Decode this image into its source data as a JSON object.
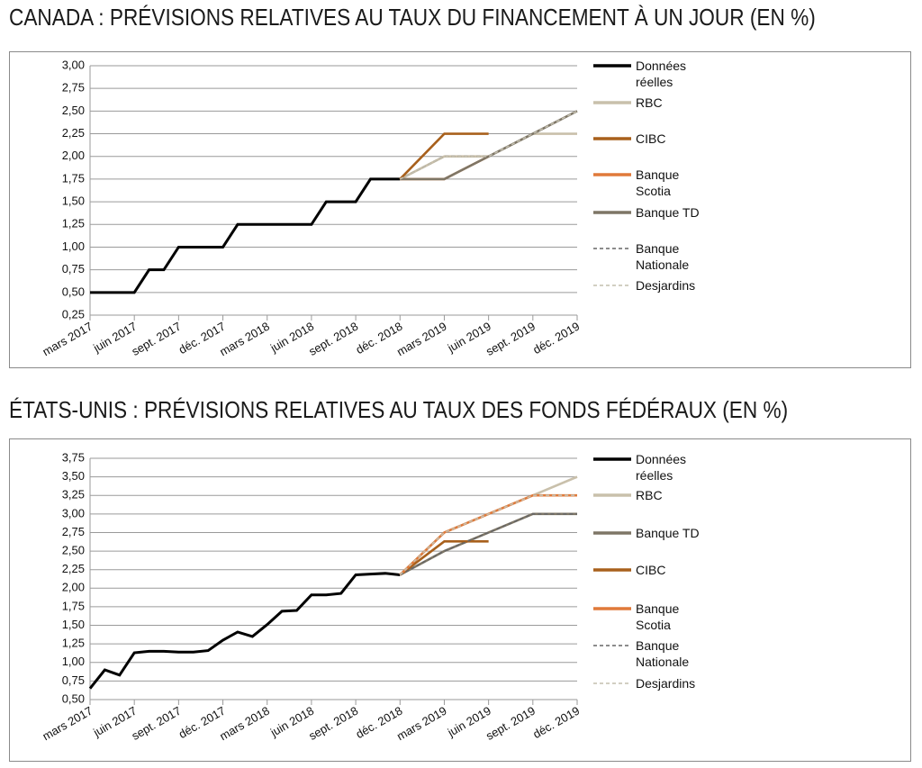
{
  "chart_data": [
    {
      "type": "line",
      "title": "CANADA : PRÉVISIONS RELATIVES AU TAUX DU FINANCEMENT À UN JOUR (EN %)",
      "xlim": [
        "2017-03",
        "2019-12"
      ],
      "xticks": [
        {
          "value": "2017-03",
          "label": "mars 2017"
        },
        {
          "value": "2017-06",
          "label": "juin 2017"
        },
        {
          "value": "2017-09",
          "label": "sept. 2017"
        },
        {
          "value": "2017-12",
          "label": "déc. 2017"
        },
        {
          "value": "2018-03",
          "label": "mars 2018"
        },
        {
          "value": "2018-06",
          "label": "juin 2018"
        },
        {
          "value": "2018-09",
          "label": "sept. 2018"
        },
        {
          "value": "2018-12",
          "label": "déc. 2018"
        },
        {
          "value": "2019-03",
          "label": "mars 2019"
        },
        {
          "value": "2019-06",
          "label": "juin 2019"
        },
        {
          "value": "2019-09",
          "label": "sept. 2019"
        },
        {
          "value": "2019-12",
          "label": "déc. 2019"
        }
      ],
      "ylim": [
        0.25,
        3.0
      ],
      "yticks": [
        {
          "value": 0.25,
          "label": "0,25"
        },
        {
          "value": 0.5,
          "label": "0,50"
        },
        {
          "value": 0.75,
          "label": "0,75"
        },
        {
          "value": 1.0,
          "label": "1,00"
        },
        {
          "value": 1.25,
          "label": "1,25"
        },
        {
          "value": 1.5,
          "label": "1,50"
        },
        {
          "value": 1.75,
          "label": "1,75"
        },
        {
          "value": 2.0,
          "label": "2,00"
        },
        {
          "value": 2.25,
          "label": "2,25"
        },
        {
          "value": 2.5,
          "label": "2,50"
        },
        {
          "value": 2.75,
          "label": "2,75"
        },
        {
          "value": 3.0,
          "label": "3,00"
        }
      ],
      "grid": true,
      "series": [
        {
          "name": "Données réelles",
          "color": "#000000",
          "x": [
            "2017-03",
            "2017-04",
            "2017-05",
            "2017-06",
            "2017-07",
            "2017-08",
            "2017-09",
            "2017-10",
            "2017-11",
            "2017-12",
            "2018-01",
            "2018-02",
            "2018-03",
            "2018-04",
            "2018-05",
            "2018-06",
            "2018-07",
            "2018-08",
            "2018-09",
            "2018-10",
            "2018-11",
            "2018-12"
          ],
          "values": [
            0.5,
            0.5,
            0.5,
            0.5,
            0.75,
            0.75,
            1.0,
            1.0,
            1.0,
            1.0,
            1.25,
            1.25,
            1.25,
            1.25,
            1.25,
            1.25,
            1.5,
            1.5,
            1.5,
            1.75,
            1.75,
            1.75
          ]
        },
        {
          "name": "RBC",
          "color": "#c9c0ab",
          "x": [
            "2018-12",
            "2019-03",
            "2019-06",
            "2019-09",
            "2019-12"
          ],
          "values": [
            1.75,
            2.0,
            2.0,
            2.25,
            2.25
          ]
        },
        {
          "name": "CIBC",
          "color": "#a8601c",
          "x": [
            "2018-12",
            "2019-03",
            "2019-06"
          ],
          "values": [
            1.75,
            2.25,
            2.25
          ]
        },
        {
          "name": "Banque Scotia",
          "color": "#e07a3a",
          "x": [
            "2018-12",
            "2019-03",
            "2019-06"
          ],
          "values": [
            1.75,
            1.75,
            2.0
          ]
        },
        {
          "name": "Banque TD",
          "color": "#7e7666",
          "x": [
            "2018-12",
            "2019-03",
            "2019-06",
            "2019-09",
            "2019-12"
          ],
          "values": [
            1.75,
            1.75,
            2.0,
            2.25,
            2.5
          ]
        },
        {
          "name": "Banque Nationale",
          "color": "#666666",
          "dash": true,
          "x": [
            "2018-12",
            "2019-03",
            "2019-06",
            "2019-09",
            "2019-12"
          ],
          "values": [
            1.75,
            2.0,
            2.0,
            2.25,
            2.5
          ]
        },
        {
          "name": "Desjardins",
          "color": "#c4bfae",
          "dash": true,
          "x": [
            "2018-12",
            "2019-03",
            "2019-06",
            "2019-09",
            "2019-12"
          ],
          "values": [
            1.75,
            2.0,
            2.0,
            2.25,
            2.5
          ]
        }
      ]
    },
    {
      "type": "line",
      "title": "ÉTATS-UNIS : PRÉVISIONS RELATIVES AU TAUX DES FONDS FÉDÉRAUX (EN %)",
      "xlim": [
        "2017-03",
        "2019-12"
      ],
      "xticks": [
        {
          "value": "2017-03",
          "label": "mars 2017"
        },
        {
          "value": "2017-06",
          "label": "juin 2017"
        },
        {
          "value": "2017-09",
          "label": "sept. 2017"
        },
        {
          "value": "2017-12",
          "label": "déc. 2017"
        },
        {
          "value": "2018-03",
          "label": "mars 2018"
        },
        {
          "value": "2018-06",
          "label": "juin 2018"
        },
        {
          "value": "2018-09",
          "label": "sept. 2018"
        },
        {
          "value": "2018-12",
          "label": "déc. 2018"
        },
        {
          "value": "2019-03",
          "label": "mars 2019"
        },
        {
          "value": "2019-06",
          "label": "juin 2019"
        },
        {
          "value": "2019-09",
          "label": "sept. 2019"
        },
        {
          "value": "2019-12",
          "label": "déc. 2019"
        }
      ],
      "ylim": [
        0.5,
        3.75
      ],
      "yticks": [
        {
          "value": 0.5,
          "label": "0,50"
        },
        {
          "value": 0.75,
          "label": "0,75"
        },
        {
          "value": 1.0,
          "label": "1,00"
        },
        {
          "value": 1.25,
          "label": "1,25"
        },
        {
          "value": 1.5,
          "label": "1,50"
        },
        {
          "value": 1.75,
          "label": "1,75"
        },
        {
          "value": 2.0,
          "label": "2,00"
        },
        {
          "value": 2.25,
          "label": "2,25"
        },
        {
          "value": 2.5,
          "label": "2,50"
        },
        {
          "value": 2.75,
          "label": "2,75"
        },
        {
          "value": 3.0,
          "label": "3,00"
        },
        {
          "value": 3.25,
          "label": "3,25"
        },
        {
          "value": 3.5,
          "label": "3,50"
        },
        {
          "value": 3.75,
          "label": "3,75"
        }
      ],
      "grid": true,
      "series": [
        {
          "name": "Données réelles",
          "color": "#000000",
          "x": [
            "2017-03",
            "2017-04",
            "2017-05",
            "2017-06",
            "2017-07",
            "2017-08",
            "2017-09",
            "2017-10",
            "2017-11",
            "2017-12",
            "2018-01",
            "2018-02",
            "2018-03",
            "2018-04",
            "2018-05",
            "2018-06",
            "2018-07",
            "2018-08",
            "2018-09",
            "2018-10",
            "2018-11",
            "2018-12"
          ],
          "values": [
            0.65,
            0.9,
            0.83,
            1.13,
            1.15,
            1.15,
            1.14,
            1.14,
            1.16,
            1.3,
            1.41,
            1.35,
            1.51,
            1.69,
            1.7,
            1.91,
            1.91,
            1.93,
            2.18,
            2.19,
            2.2,
            2.18
          ]
        },
        {
          "name": "RBC",
          "color": "#c9c0ab",
          "x": [
            "2018-12",
            "2019-03",
            "2019-06",
            "2019-09",
            "2019-12"
          ],
          "values": [
            2.18,
            2.75,
            3.0,
            3.25,
            3.5
          ]
        },
        {
          "name": "Banque TD",
          "color": "#7e7666",
          "x": [
            "2018-12",
            "2019-03",
            "2019-06",
            "2019-09",
            "2019-12"
          ],
          "values": [
            2.18,
            2.5,
            2.75,
            3.0,
            3.0
          ]
        },
        {
          "name": "CIBC",
          "color": "#a8601c",
          "x": [
            "2018-12",
            "2019-03",
            "2019-06"
          ],
          "values": [
            2.18,
            2.63,
            2.63
          ]
        },
        {
          "name": "Banque Scotia",
          "color": "#e07a3a",
          "x": [
            "2018-12",
            "2019-03",
            "2019-06",
            "2019-09",
            "2019-12"
          ],
          "values": [
            2.18,
            2.75,
            3.0,
            3.25,
            3.25
          ]
        },
        {
          "name": "Banque Nationale",
          "color": "#666666",
          "dash": true,
          "x": [
            "2018-12",
            "2019-03",
            "2019-06",
            "2019-09",
            "2019-12"
          ],
          "values": [
            2.18,
            2.5,
            2.75,
            3.0,
            3.0
          ]
        },
        {
          "name": "Desjardins",
          "color": "#c4bfae",
          "dash": true,
          "x": [
            "2018-12",
            "2019-03",
            "2019-06",
            "2019-09",
            "2019-12"
          ],
          "values": [
            2.18,
            2.75,
            3.0,
            3.25,
            3.25
          ]
        }
      ]
    }
  ]
}
